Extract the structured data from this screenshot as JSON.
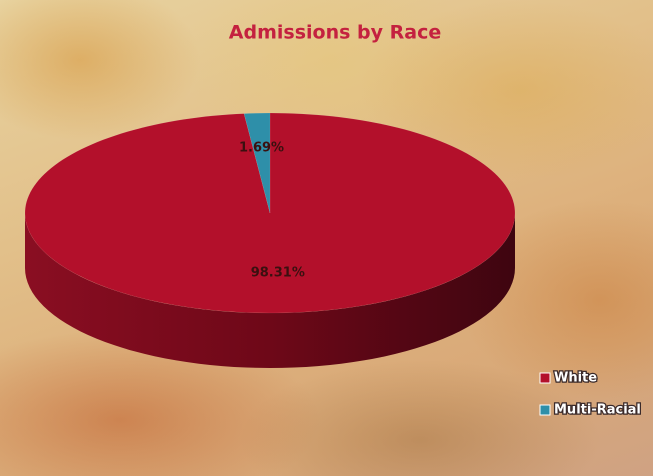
{
  "chart_data": {
    "type": "pie3d",
    "title": "Admissions by Race",
    "categories": [
      "White",
      "Multi-Racial"
    ],
    "values": [
      98.31,
      1.69
    ],
    "value_labels": [
      "98.31%",
      "1.69%"
    ],
    "colors": [
      "#b3102b",
      "#2e8fa9"
    ],
    "legend": "bottom-right"
  }
}
